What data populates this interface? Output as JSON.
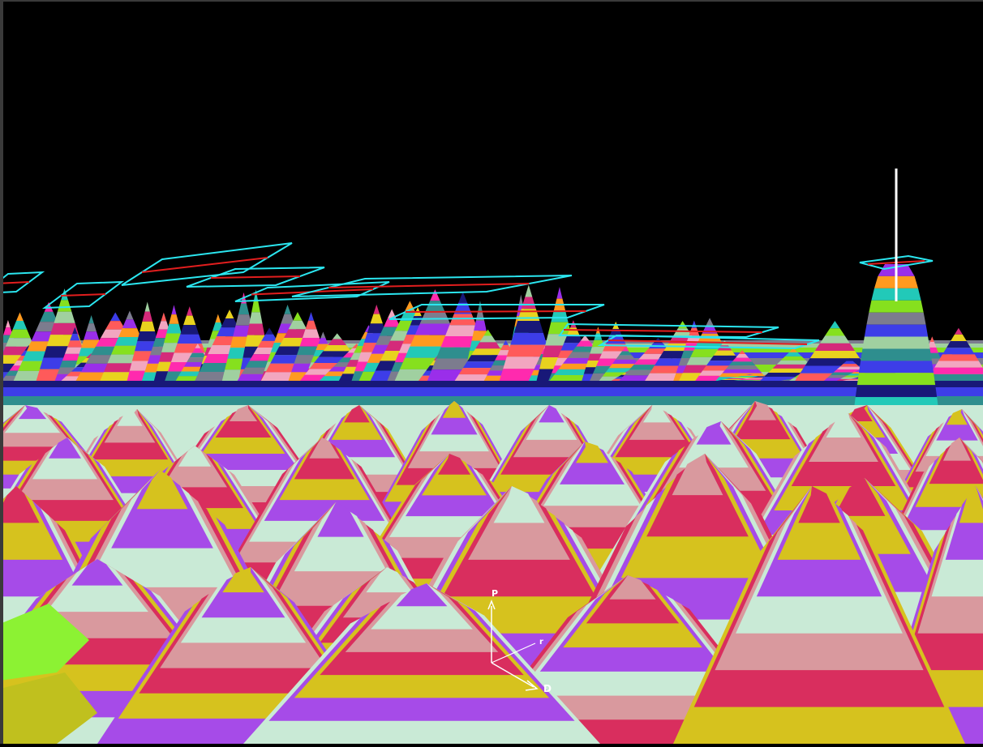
{
  "scene": {
    "background": "#000000",
    "band_palette_far": [
      "#F2A6C0",
      "#FF9A1F",
      "#E8D21E",
      "#FF2AAE",
      "#22C9B8",
      "#181878",
      "#2E8E8E",
      "#86E01E",
      "#3D3DE8",
      "#7C7C8E",
      "#A0D0A0",
      "#FF5A5A",
      "#9A2EEA",
      "#D42A7A"
    ],
    "band_palette_near": [
      "#A64BE8",
      "#C9EAD6",
      "#D9999E",
      "#D92E5E",
      "#D6C21E"
    ],
    "plane_outline_color": "#2BE6F0",
    "plane_center_line_color": "#E21E1E",
    "marker_color": "#FFFFFF"
  },
  "axes": {
    "labels": [
      "P",
      "r",
      "D"
    ],
    "color": "#FFFFFF"
  }
}
